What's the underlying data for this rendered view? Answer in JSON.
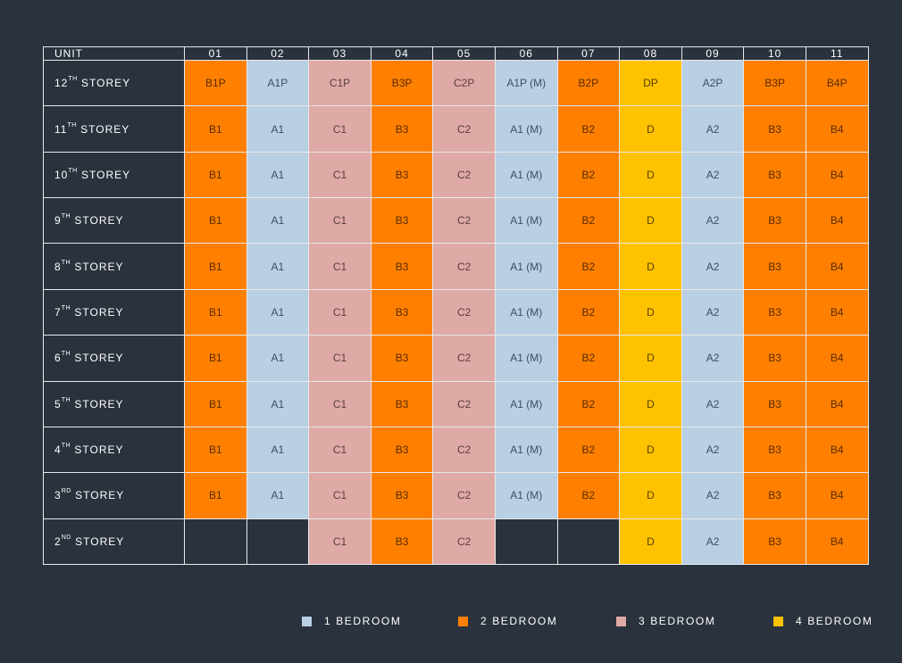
{
  "header": {
    "label": "UNIT",
    "units": [
      "01",
      "02",
      "03",
      "04",
      "05",
      "06",
      "07",
      "08",
      "09",
      "10",
      "11"
    ]
  },
  "rows": [
    {
      "num": "12",
      "sup": "TH",
      "label": "STOREY",
      "cells": [
        {
          "t": "B1P",
          "c": "2"
        },
        {
          "t": "A1P",
          "c": "1"
        },
        {
          "t": "C1P",
          "c": "3"
        },
        {
          "t": "B3P",
          "c": "2"
        },
        {
          "t": "C2P",
          "c": "3"
        },
        {
          "t": "A1P (M)",
          "c": "1"
        },
        {
          "t": "B2P",
          "c": "2"
        },
        {
          "t": "DP",
          "c": "4"
        },
        {
          "t": "A2P",
          "c": "1"
        },
        {
          "t": "B3P",
          "c": "2"
        },
        {
          "t": "B4P",
          "c": "2"
        }
      ]
    },
    {
      "num": "11",
      "sup": "TH",
      "label": "STOREY",
      "cells": [
        {
          "t": "B1",
          "c": "2"
        },
        {
          "t": "A1",
          "c": "1"
        },
        {
          "t": "C1",
          "c": "3"
        },
        {
          "t": "B3",
          "c": "2"
        },
        {
          "t": "C2",
          "c": "3"
        },
        {
          "t": "A1 (M)",
          "c": "1"
        },
        {
          "t": "B2",
          "c": "2"
        },
        {
          "t": "D",
          "c": "4"
        },
        {
          "t": "A2",
          "c": "1"
        },
        {
          "t": "B3",
          "c": "2"
        },
        {
          "t": "B4",
          "c": "2"
        }
      ]
    },
    {
      "num": "10",
      "sup": "TH",
      "label": "STOREY",
      "cells": [
        {
          "t": "B1",
          "c": "2"
        },
        {
          "t": "A1",
          "c": "1"
        },
        {
          "t": "C1",
          "c": "3"
        },
        {
          "t": "B3",
          "c": "2"
        },
        {
          "t": "C2",
          "c": "3"
        },
        {
          "t": "A1 (M)",
          "c": "1"
        },
        {
          "t": "B2",
          "c": "2"
        },
        {
          "t": "D",
          "c": "4"
        },
        {
          "t": "A2",
          "c": "1"
        },
        {
          "t": "B3",
          "c": "2"
        },
        {
          "t": "B4",
          "c": "2"
        }
      ]
    },
    {
      "num": "9",
      "sup": "TH",
      "label": "STOREY",
      "cells": [
        {
          "t": "B1",
          "c": "2"
        },
        {
          "t": "A1",
          "c": "1"
        },
        {
          "t": "C1",
          "c": "3"
        },
        {
          "t": "B3",
          "c": "2"
        },
        {
          "t": "C2",
          "c": "3"
        },
        {
          "t": "A1 (M)",
          "c": "1"
        },
        {
          "t": "B2",
          "c": "2"
        },
        {
          "t": "D",
          "c": "4"
        },
        {
          "t": "A2",
          "c": "1"
        },
        {
          "t": "B3",
          "c": "2"
        },
        {
          "t": "B4",
          "c": "2"
        }
      ]
    },
    {
      "num": "8",
      "sup": "TH",
      "label": "STOREY",
      "cells": [
        {
          "t": "B1",
          "c": "2"
        },
        {
          "t": "A1",
          "c": "1"
        },
        {
          "t": "C1",
          "c": "3"
        },
        {
          "t": "B3",
          "c": "2"
        },
        {
          "t": "C2",
          "c": "3"
        },
        {
          "t": "A1 (M)",
          "c": "1"
        },
        {
          "t": "B2",
          "c": "2"
        },
        {
          "t": "D",
          "c": "4"
        },
        {
          "t": "A2",
          "c": "1"
        },
        {
          "t": "B3",
          "c": "2"
        },
        {
          "t": "B4",
          "c": "2"
        }
      ]
    },
    {
      "num": "7",
      "sup": "TH",
      "label": "STOREY",
      "cells": [
        {
          "t": "B1",
          "c": "2"
        },
        {
          "t": "A1",
          "c": "1"
        },
        {
          "t": "C1",
          "c": "3"
        },
        {
          "t": "B3",
          "c": "2"
        },
        {
          "t": "C2",
          "c": "3"
        },
        {
          "t": "A1 (M)",
          "c": "1"
        },
        {
          "t": "B2",
          "c": "2"
        },
        {
          "t": "D",
          "c": "4"
        },
        {
          "t": "A2",
          "c": "1"
        },
        {
          "t": "B3",
          "c": "2"
        },
        {
          "t": "B4",
          "c": "2"
        }
      ]
    },
    {
      "num": "6",
      "sup": "TH",
      "label": "STOREY",
      "cells": [
        {
          "t": "B1",
          "c": "2"
        },
        {
          "t": "A1",
          "c": "1"
        },
        {
          "t": "C1",
          "c": "3"
        },
        {
          "t": "B3",
          "c": "2"
        },
        {
          "t": "C2",
          "c": "3"
        },
        {
          "t": "A1 (M)",
          "c": "1"
        },
        {
          "t": "B2",
          "c": "2"
        },
        {
          "t": "D",
          "c": "4"
        },
        {
          "t": "A2",
          "c": "1"
        },
        {
          "t": "B3",
          "c": "2"
        },
        {
          "t": "B4",
          "c": "2"
        }
      ]
    },
    {
      "num": "5",
      "sup": "TH",
      "label": "STOREY",
      "cells": [
        {
          "t": "B1",
          "c": "2"
        },
        {
          "t": "A1",
          "c": "1"
        },
        {
          "t": "C1",
          "c": "3"
        },
        {
          "t": "B3",
          "c": "2"
        },
        {
          "t": "C2",
          "c": "3"
        },
        {
          "t": "A1 (M)",
          "c": "1"
        },
        {
          "t": "B2",
          "c": "2"
        },
        {
          "t": "D",
          "c": "4"
        },
        {
          "t": "A2",
          "c": "1"
        },
        {
          "t": "B3",
          "c": "2"
        },
        {
          "t": "B4",
          "c": "2"
        }
      ]
    },
    {
      "num": "4",
      "sup": "TH",
      "label": "STOREY",
      "cells": [
        {
          "t": "B1",
          "c": "2"
        },
        {
          "t": "A1",
          "c": "1"
        },
        {
          "t": "C1",
          "c": "3"
        },
        {
          "t": "B3",
          "c": "2"
        },
        {
          "t": "C2",
          "c": "3"
        },
        {
          "t": "A1 (M)",
          "c": "1"
        },
        {
          "t": "B2",
          "c": "2"
        },
        {
          "t": "D",
          "c": "4"
        },
        {
          "t": "A2",
          "c": "1"
        },
        {
          "t": "B3",
          "c": "2"
        },
        {
          "t": "B4",
          "c": "2"
        }
      ]
    },
    {
      "num": "3",
      "sup": "RD",
      "label": "STOREY",
      "cells": [
        {
          "t": "B1",
          "c": "2"
        },
        {
          "t": "A1",
          "c": "1"
        },
        {
          "t": "C1",
          "c": "3"
        },
        {
          "t": "B3",
          "c": "2"
        },
        {
          "t": "C2",
          "c": "3"
        },
        {
          "t": "A1 (M)",
          "c": "1"
        },
        {
          "t": "B2",
          "c": "2"
        },
        {
          "t": "D",
          "c": "4"
        },
        {
          "t": "A2",
          "c": "1"
        },
        {
          "t": "B3",
          "c": "2"
        },
        {
          "t": "B4",
          "c": "2"
        }
      ]
    },
    {
      "num": "2",
      "sup": "ND",
      "label": "STOREY",
      "cells": [
        {
          "t": "",
          "c": "empty"
        },
        {
          "t": "",
          "c": "empty"
        },
        {
          "t": "C1",
          "c": "3"
        },
        {
          "t": "B3",
          "c": "2"
        },
        {
          "t": "C2",
          "c": "3"
        },
        {
          "t": "",
          "c": "empty"
        },
        {
          "t": "",
          "c": "empty"
        },
        {
          "t": "D",
          "c": "4"
        },
        {
          "t": "A2",
          "c": "1"
        },
        {
          "t": "B3",
          "c": "2"
        },
        {
          "t": "B4",
          "c": "2"
        }
      ]
    }
  ],
  "legend": [
    {
      "label": "1 BEDROOM",
      "color": "#b9cfe4"
    },
    {
      "label": "2 BEDROOM",
      "color": "#ff8000"
    },
    {
      "label": "3 BEDROOM",
      "color": "#dfa9a6"
    },
    {
      "label": "4 BEDROOM",
      "color": "#ffc200"
    }
  ],
  "colors": {
    "background": "#2a323d",
    "grid_line": "#e8e8e8",
    "bedroom_1": "#b9cfe4",
    "bedroom_2": "#ff8000",
    "bedroom_3": "#dfa9a6",
    "bedroom_4": "#ffc200"
  }
}
